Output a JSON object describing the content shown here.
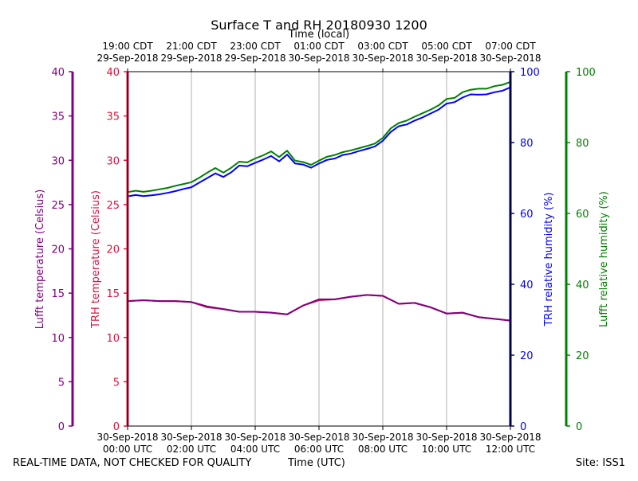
{
  "chart_data": {
    "type": "line",
    "title": "Surface T and RH 20180930 1200",
    "top_axis": {
      "label": "Time (local)",
      "ticks": [
        {
          "utc_hour": 0,
          "line1": "19:00 CDT",
          "line2": "29-Sep-2018"
        },
        {
          "utc_hour": 2,
          "line1": "21:00 CDT",
          "line2": "29-Sep-2018"
        },
        {
          "utc_hour": 4,
          "line1": "23:00 CDT",
          "line2": "29-Sep-2018"
        },
        {
          "utc_hour": 6,
          "line1": "01:00 CDT",
          "line2": "30-Sep-2018"
        },
        {
          "utc_hour": 8,
          "line1": "03:00 CDT",
          "line2": "30-Sep-2018"
        },
        {
          "utc_hour": 10,
          "line1": "05:00 CDT",
          "line2": "30-Sep-2018"
        },
        {
          "utc_hour": 12,
          "line1": "07:00 CDT",
          "line2": "30-Sep-2018"
        }
      ]
    },
    "bottom_axis": {
      "label": "Time (UTC)",
      "xlim": [
        0,
        12
      ],
      "ticks": [
        {
          "utc_hour": 0,
          "line1": "30-Sep-2018",
          "line2": "00:00 UTC"
        },
        {
          "utc_hour": 2,
          "line1": "30-Sep-2018",
          "line2": "02:00 UTC"
        },
        {
          "utc_hour": 4,
          "line1": "30-Sep-2018",
          "line2": "04:00 UTC"
        },
        {
          "utc_hour": 6,
          "line1": "30-Sep-2018",
          "line2": "06:00 UTC"
        },
        {
          "utc_hour": 8,
          "line1": "30-Sep-2018",
          "line2": "08:00 UTC"
        },
        {
          "utc_hour": 10,
          "line1": "30-Sep-2018",
          "line2": "10:00 UTC"
        },
        {
          "utc_hour": 12,
          "line1": "30-Sep-2018",
          "line2": "12:00 UTC"
        }
      ]
    },
    "grid": "vertical",
    "axes": [
      {
        "name": "lufft-temperature",
        "label": "Lufft temperature (Celsius)",
        "color": "#800080",
        "ylim": [
          0,
          40
        ],
        "ticks": [
          0,
          5,
          10,
          15,
          20,
          25,
          30,
          35,
          40
        ],
        "placement": "far-left"
      },
      {
        "name": "trh-temperature",
        "label": "TRH temperature (Celsius)",
        "color": "#dc143c",
        "ylim": [
          0,
          40
        ],
        "ticks": [
          0,
          5,
          10,
          15,
          20,
          25,
          30,
          35,
          40
        ],
        "placement": "left"
      },
      {
        "name": "trh-rh",
        "label": "TRH relative humidity (%)",
        "color": "#0000ff",
        "axis_color": "#00008b",
        "ylim": [
          0,
          100
        ],
        "ticks": [
          0,
          20,
          40,
          60,
          80,
          100
        ],
        "placement": "right"
      },
      {
        "name": "lufft-rh",
        "label": "Lufft relative humidity (%)",
        "color": "#008000",
        "ylim": [
          0,
          100
        ],
        "ticks": [
          0,
          20,
          40,
          60,
          80,
          100
        ],
        "placement": "far-right"
      }
    ],
    "series": [
      {
        "name": "TRH temperature",
        "axis": "trh-temperature",
        "color": "#dc143c",
        "x": [
          0,
          0.5,
          1,
          1.5,
          2,
          2.5,
          3,
          3.5,
          4,
          4.5,
          5,
          5.5,
          6,
          6.5,
          7,
          7.5,
          8,
          8.5,
          9,
          9.5,
          10,
          10.5,
          11,
          11.5,
          12
        ],
        "y": [
          14.1,
          14.2,
          14.1,
          14.1,
          14.0,
          13.4,
          13.2,
          12.9,
          12.9,
          12.8,
          12.6,
          13.6,
          14.2,
          14.3,
          14.6,
          14.8,
          14.7,
          13.8,
          13.9,
          13.4,
          12.7,
          12.8,
          12.3,
          12.1,
          11.9
        ]
      },
      {
        "name": "Lufft temperature",
        "axis": "lufft-temperature",
        "color": "#800080",
        "x": [
          0,
          0.5,
          1,
          1.5,
          2,
          2.5,
          3,
          3.5,
          4,
          4.5,
          5,
          5.5,
          6,
          6.5,
          7,
          7.5,
          8,
          8.5,
          9,
          9.5,
          10,
          10.5,
          11,
          11.5,
          12
        ],
        "y": [
          14.1,
          14.2,
          14.1,
          14.1,
          14.0,
          13.5,
          13.2,
          12.9,
          12.9,
          12.8,
          12.6,
          13.6,
          14.3,
          14.3,
          14.6,
          14.8,
          14.7,
          13.8,
          13.9,
          13.4,
          12.7,
          12.8,
          12.3,
          12.1,
          11.9
        ]
      },
      {
        "name": "TRH relative humidity",
        "axis": "trh-rh",
        "color": "#0000ff",
        "x": [
          0,
          0.25,
          0.5,
          0.75,
          1,
          1.25,
          1.5,
          1.75,
          2,
          2.25,
          2.5,
          2.75,
          3,
          3.25,
          3.5,
          3.75,
          4,
          4.25,
          4.5,
          4.75,
          5,
          5.25,
          5.5,
          5.75,
          6,
          6.25,
          6.5,
          6.75,
          7,
          7.25,
          7.5,
          7.75,
          8,
          8.25,
          8.5,
          8.75,
          9,
          9.25,
          9.5,
          9.75,
          10,
          10.25,
          10.5,
          10.75,
          11,
          11.25,
          11.5,
          11.75,
          12
        ],
        "y": [
          64.8,
          65.2,
          64.9,
          65.1,
          65.4,
          65.8,
          66.3,
          66.9,
          67.4,
          68.7,
          70.0,
          71.3,
          70.3,
          71.6,
          73.5,
          73.3,
          74.3,
          75.2,
          76.2,
          74.7,
          76.6,
          74.1,
          73.8,
          72.9,
          74.1,
          75.1,
          75.5,
          76.5,
          76.9,
          77.6,
          78.2,
          78.9,
          80.5,
          83.0,
          84.6,
          85.1,
          86.2,
          87.1,
          88.2,
          89.3,
          91.0,
          91.4,
          92.7,
          93.6,
          93.5,
          93.6,
          94.2,
          94.6,
          95.6
        ]
      },
      {
        "name": "Lufft relative humidity",
        "axis": "lufft-rh",
        "color": "#008000",
        "x": [
          0,
          0.25,
          0.5,
          0.75,
          1,
          1.25,
          1.5,
          1.75,
          2,
          2.25,
          2.5,
          2.75,
          3,
          3.25,
          3.5,
          3.75,
          4,
          4.25,
          4.5,
          4.75,
          5,
          5.25,
          5.5,
          5.75,
          6,
          6.25,
          6.5,
          6.75,
          7,
          7.25,
          7.5,
          7.75,
          8,
          8.25,
          8.5,
          8.75,
          9,
          9.25,
          9.5,
          9.75,
          10,
          10.25,
          10.5,
          10.75,
          11,
          11.25,
          11.5,
          11.75,
          12
        ],
        "y": [
          66.0,
          66.4,
          66.1,
          66.4,
          66.8,
          67.2,
          67.8,
          68.3,
          68.8,
          70.1,
          71.5,
          72.8,
          71.5,
          72.9,
          74.6,
          74.4,
          75.5,
          76.4,
          77.5,
          75.9,
          77.7,
          74.9,
          74.5,
          73.7,
          74.9,
          76.0,
          76.5,
          77.3,
          77.8,
          78.4,
          79.0,
          79.7,
          81.3,
          84.0,
          85.5,
          86.2,
          87.3,
          88.3,
          89.3,
          90.5,
          92.3,
          92.6,
          94.2,
          94.9,
          95.2,
          95.2,
          95.9,
          96.3,
          97.1
        ]
      }
    ]
  },
  "footer": {
    "disclaimer": "REAL-TIME DATA, NOT CHECKED FOR QUALITY",
    "xlabel": "Time (UTC)",
    "site": "Site: ISS1"
  }
}
